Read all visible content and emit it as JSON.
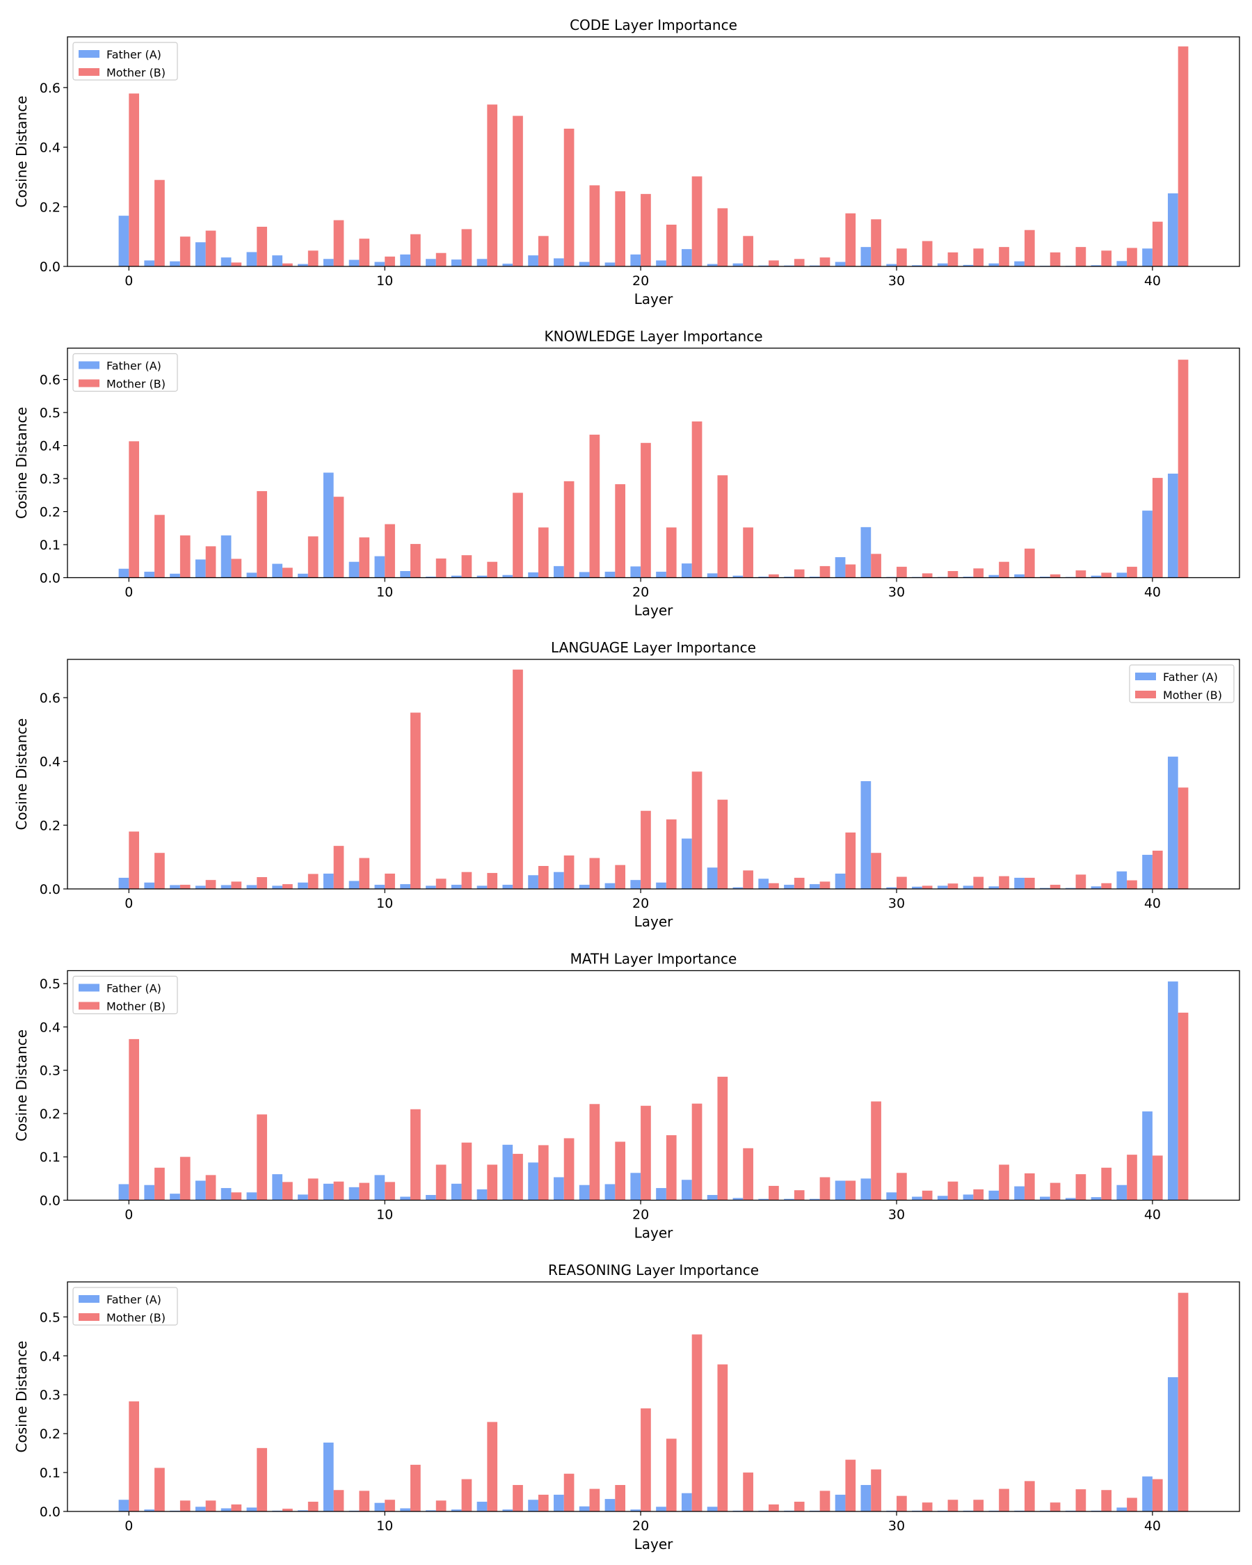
{
  "colors": {
    "father": "#77a6f5",
    "mother": "#f27c7c",
    "axis": "#000000"
  },
  "chart_data": [
    {
      "type": "bar",
      "title": "CODE Layer Importance",
      "xlabel": "Layer",
      "ylabel": "Cosine Distance",
      "xlim": [
        -2.4,
        43.4
      ],
      "ylim": [
        0,
        0.77
      ],
      "yticks": [
        0.0,
        0.2,
        0.4,
        0.6
      ],
      "xticks": [
        0,
        10,
        20,
        30,
        40
      ],
      "grid": false,
      "legend_placement": "upper left",
      "categories": [
        0,
        1,
        2,
        3,
        4,
        5,
        6,
        7,
        8,
        9,
        10,
        11,
        12,
        13,
        14,
        15,
        16,
        17,
        18,
        19,
        20,
        21,
        22,
        23,
        24,
        25,
        26,
        27,
        28,
        29,
        30,
        31,
        32,
        33,
        34,
        35,
        36,
        37,
        38,
        39,
        40,
        41
      ],
      "series": [
        {
          "name": "Father (A)",
          "values": [
            0.17,
            0.02,
            0.017,
            0.081,
            0.03,
            0.048,
            0.037,
            0.008,
            0.025,
            0.022,
            0.015,
            0.04,
            0.025,
            0.023,
            0.025,
            0.009,
            0.037,
            0.027,
            0.015,
            0.013,
            0.04,
            0.02,
            0.058,
            0.008,
            0.01,
            0.003,
            0.003,
            0.003,
            0.015,
            0.065,
            0.008,
            0.004,
            0.01,
            0.005,
            0.01,
            0.017,
            0.002,
            0.002,
            0.004,
            0.018,
            0.06,
            0.245
          ]
        },
        {
          "name": "Mother (B)",
          "values": [
            0.58,
            0.29,
            0.1,
            0.12,
            0.013,
            0.133,
            0.01,
            0.053,
            0.155,
            0.093,
            0.033,
            0.108,
            0.045,
            0.125,
            0.543,
            0.505,
            0.102,
            0.462,
            0.272,
            0.252,
            0.243,
            0.14,
            0.302,
            0.195,
            0.102,
            0.02,
            0.025,
            0.03,
            0.178,
            0.158,
            0.06,
            0.085,
            0.047,
            0.06,
            0.065,
            0.122,
            0.047,
            0.065,
            0.053,
            0.062,
            0.15,
            0.738
          ]
        }
      ]
    },
    {
      "type": "bar",
      "title": "KNOWLEDGE Layer Importance",
      "xlabel": "Layer",
      "ylabel": "Cosine Distance",
      "xlim": [
        -2.4,
        43.4
      ],
      "ylim": [
        0,
        0.695
      ],
      "yticks": [
        0.0,
        0.1,
        0.2,
        0.3,
        0.4,
        0.5,
        0.6
      ],
      "xticks": [
        0,
        10,
        20,
        30,
        40
      ],
      "grid": false,
      "legend_placement": "upper left",
      "categories": [
        0,
        1,
        2,
        3,
        4,
        5,
        6,
        7,
        8,
        9,
        10,
        11,
        12,
        13,
        14,
        15,
        16,
        17,
        18,
        19,
        20,
        21,
        22,
        23,
        24,
        25,
        26,
        27,
        28,
        29,
        30,
        31,
        32,
        33,
        34,
        35,
        36,
        37,
        38,
        39,
        40,
        41
      ],
      "series": [
        {
          "name": "Father (A)",
          "values": [
            0.027,
            0.018,
            0.012,
            0.055,
            0.128,
            0.015,
            0.042,
            0.012,
            0.318,
            0.048,
            0.065,
            0.02,
            0.003,
            0.006,
            0.006,
            0.008,
            0.016,
            0.035,
            0.017,
            0.018,
            0.034,
            0.018,
            0.043,
            0.013,
            0.006,
            0.003,
            0.003,
            0.003,
            0.062,
            0.153,
            0.002,
            0.002,
            0.002,
            0.003,
            0.008,
            0.01,
            0.003,
            0.002,
            0.006,
            0.015,
            0.203,
            0.315
          ]
        },
        {
          "name": "Mother (B)",
          "values": [
            0.413,
            0.19,
            0.128,
            0.095,
            0.057,
            0.262,
            0.03,
            0.125,
            0.245,
            0.122,
            0.162,
            0.102,
            0.058,
            0.068,
            0.048,
            0.257,
            0.152,
            0.292,
            0.433,
            0.283,
            0.408,
            0.152,
            0.473,
            0.31,
            0.152,
            0.01,
            0.025,
            0.035,
            0.04,
            0.072,
            0.033,
            0.013,
            0.02,
            0.028,
            0.048,
            0.088,
            0.01,
            0.022,
            0.015,
            0.033,
            0.302,
            0.66
          ]
        }
      ]
    },
    {
      "type": "bar",
      "title": "LANGUAGE Layer Importance",
      "xlabel": "Layer",
      "ylabel": "Cosine Distance",
      "xlim": [
        -2.4,
        43.4
      ],
      "ylim": [
        0,
        0.72
      ],
      "yticks": [
        0.0,
        0.2,
        0.4,
        0.6
      ],
      "xticks": [
        0,
        10,
        20,
        30,
        40
      ],
      "grid": false,
      "legend_placement": "upper right",
      "categories": [
        0,
        1,
        2,
        3,
        4,
        5,
        6,
        7,
        8,
        9,
        10,
        11,
        12,
        13,
        14,
        15,
        16,
        17,
        18,
        19,
        20,
        21,
        22,
        23,
        24,
        25,
        26,
        27,
        28,
        29,
        30,
        31,
        32,
        33,
        34,
        35,
        36,
        37,
        38,
        39,
        40,
        41
      ],
      "series": [
        {
          "name": "Father (A)",
          "values": [
            0.035,
            0.02,
            0.012,
            0.01,
            0.012,
            0.012,
            0.01,
            0.02,
            0.048,
            0.025,
            0.013,
            0.015,
            0.01,
            0.013,
            0.01,
            0.013,
            0.043,
            0.053,
            0.013,
            0.018,
            0.028,
            0.02,
            0.158,
            0.067,
            0.005,
            0.032,
            0.013,
            0.015,
            0.048,
            0.338,
            0.005,
            0.007,
            0.01,
            0.01,
            0.008,
            0.035,
            0.003,
            0.003,
            0.008,
            0.055,
            0.107,
            0.415
          ]
        },
        {
          "name": "Mother (B)",
          "values": [
            0.18,
            0.113,
            0.013,
            0.028,
            0.023,
            0.037,
            0.015,
            0.047,
            0.135,
            0.097,
            0.048,
            0.553,
            0.032,
            0.053,
            0.05,
            0.688,
            0.072,
            0.105,
            0.097,
            0.075,
            0.245,
            0.218,
            0.368,
            0.28,
            0.058,
            0.018,
            0.035,
            0.023,
            0.177,
            0.113,
            0.038,
            0.01,
            0.017,
            0.038,
            0.04,
            0.035,
            0.013,
            0.045,
            0.018,
            0.027,
            0.12,
            0.318
          ]
        }
      ]
    },
    {
      "type": "bar",
      "title": "MATH Layer Importance",
      "xlabel": "Layer",
      "ylabel": "Cosine Distance",
      "xlim": [
        -2.4,
        43.4
      ],
      "ylim": [
        0,
        0.53
      ],
      "yticks": [
        0.0,
        0.1,
        0.2,
        0.3,
        0.4,
        0.5
      ],
      "xticks": [
        0,
        10,
        20,
        30,
        40
      ],
      "grid": false,
      "legend_placement": "upper left",
      "categories": [
        0,
        1,
        2,
        3,
        4,
        5,
        6,
        7,
        8,
        9,
        10,
        11,
        12,
        13,
        14,
        15,
        16,
        17,
        18,
        19,
        20,
        21,
        22,
        23,
        24,
        25,
        26,
        27,
        28,
        29,
        30,
        31,
        32,
        33,
        34,
        35,
        36,
        37,
        38,
        39,
        40,
        41
      ],
      "series": [
        {
          "name": "Father (A)",
          "values": [
            0.037,
            0.035,
            0.015,
            0.045,
            0.028,
            0.018,
            0.06,
            0.013,
            0.038,
            0.03,
            0.058,
            0.008,
            0.012,
            0.038,
            0.025,
            0.128,
            0.087,
            0.053,
            0.035,
            0.037,
            0.063,
            0.028,
            0.047,
            0.012,
            0.005,
            0.003,
            0.003,
            0.003,
            0.045,
            0.05,
            0.018,
            0.008,
            0.01,
            0.013,
            0.022,
            0.032,
            0.008,
            0.005,
            0.007,
            0.035,
            0.205,
            0.505
          ]
        },
        {
          "name": "Mother (B)",
          "values": [
            0.372,
            0.075,
            0.1,
            0.058,
            0.018,
            0.198,
            0.042,
            0.05,
            0.043,
            0.04,
            0.042,
            0.21,
            0.082,
            0.133,
            0.082,
            0.107,
            0.127,
            0.143,
            0.222,
            0.135,
            0.218,
            0.15,
            0.223,
            0.285,
            0.12,
            0.033,
            0.023,
            0.053,
            0.045,
            0.228,
            0.063,
            0.022,
            0.043,
            0.025,
            0.082,
            0.062,
            0.04,
            0.06,
            0.075,
            0.105,
            0.103,
            0.433
          ]
        }
      ]
    },
    {
      "type": "bar",
      "title": "REASONING Layer Importance",
      "xlabel": "Layer",
      "ylabel": "Cosine Distance",
      "xlim": [
        -2.4,
        43.4
      ],
      "ylim": [
        0,
        0.59
      ],
      "yticks": [
        0.0,
        0.1,
        0.2,
        0.3,
        0.4,
        0.5
      ],
      "xticks": [
        0,
        10,
        20,
        30,
        40
      ],
      "grid": false,
      "legend_placement": "upper left",
      "categories": [
        0,
        1,
        2,
        3,
        4,
        5,
        6,
        7,
        8,
        9,
        10,
        11,
        12,
        13,
        14,
        15,
        16,
        17,
        18,
        19,
        20,
        21,
        22,
        23,
        24,
        25,
        26,
        27,
        28,
        29,
        30,
        31,
        32,
        33,
        34,
        35,
        36,
        37,
        38,
        39,
        40,
        41
      ],
      "series": [
        {
          "name": "Father (A)",
          "values": [
            0.03,
            0.005,
            0.002,
            0.012,
            0.008,
            0.01,
            0.002,
            0.003,
            0.177,
            0.002,
            0.022,
            0.008,
            0.003,
            0.005,
            0.025,
            0.005,
            0.03,
            0.043,
            0.013,
            0.032,
            0.005,
            0.012,
            0.047,
            0.012,
            0.002,
            0.002,
            0.002,
            0.002,
            0.043,
            0.068,
            0.002,
            0.002,
            0.002,
            0.002,
            0.002,
            0.002,
            0.002,
            0.002,
            0.002,
            0.01,
            0.09,
            0.345
          ]
        },
        {
          "name": "Mother (B)",
          "values": [
            0.283,
            0.112,
            0.028,
            0.028,
            0.018,
            0.163,
            0.007,
            0.025,
            0.055,
            0.053,
            0.03,
            0.12,
            0.028,
            0.083,
            0.23,
            0.068,
            0.043,
            0.097,
            0.058,
            0.068,
            0.265,
            0.187,
            0.455,
            0.378,
            0.1,
            0.018,
            0.025,
            0.053,
            0.133,
            0.108,
            0.04,
            0.023,
            0.03,
            0.03,
            0.058,
            0.078,
            0.023,
            0.057,
            0.055,
            0.035,
            0.083,
            0.562
          ]
        }
      ]
    }
  ]
}
